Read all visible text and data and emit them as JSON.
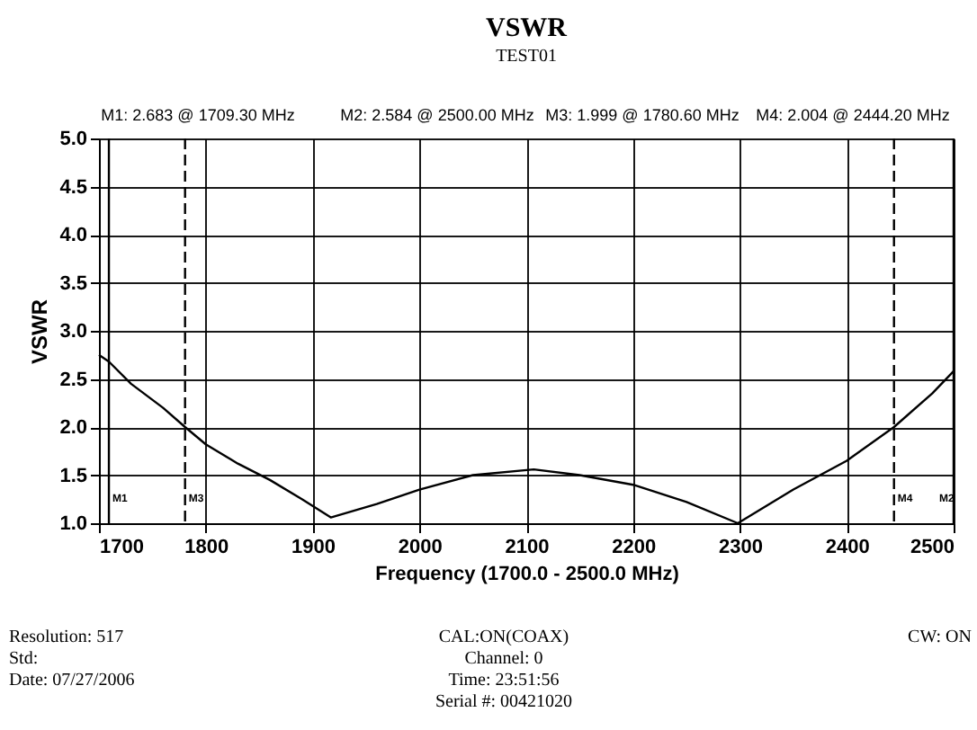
{
  "chart_data": {
    "type": "line",
    "title": "VSWR",
    "subtitle": "TEST01",
    "xlabel": "Frequency (1700.0 - 2500.0 MHz)",
    "ylabel": "VSWR",
    "x": [
      1700,
      1709.3,
      1730,
      1760,
      1780.6,
      1800,
      1830,
      1860,
      1890,
      1917,
      1960,
      2000,
      2050,
      2107,
      2150,
      2200,
      2250,
      2298,
      2350,
      2400,
      2444.2,
      2480,
      2500
    ],
    "series": [
      {
        "color": "#000000",
        "values": [
          2.75,
          2.68,
          2.45,
          2.2,
          2.0,
          1.82,
          1.62,
          1.45,
          1.25,
          1.06,
          1.2,
          1.35,
          1.5,
          1.56,
          1.5,
          1.4,
          1.22,
          1.0,
          1.35,
          1.65,
          2.0,
          2.35,
          2.58
        ]
      }
    ],
    "xlim": [
      1700,
      2500
    ],
    "xticks": [
      1700,
      1800,
      1900,
      2000,
      2100,
      2200,
      2300,
      2400,
      2500
    ],
    "ylim": [
      1.0,
      5.0
    ],
    "yticks": [
      {
        "value": 1.0,
        "label": "1.0"
      },
      1.5,
      {
        "value": 2.0,
        "label": "2.0"
      },
      2.5,
      {
        "value": 3.0,
        "label": "3.0"
      },
      3.5,
      {
        "value": 4.0,
        "label": "4.0"
      },
      4.5,
      {
        "value": 5.0,
        "label": "5.0"
      }
    ],
    "grid": true,
    "marker": "none",
    "line_style": "solid",
    "ref_lines": [
      {
        "axis": "x",
        "value": 1709.3,
        "label": "M1",
        "line_style": "solid",
        "color": "#000000"
      },
      {
        "axis": "x",
        "value": 2500,
        "label": "M2",
        "line_style": "solid",
        "color": "#000000"
      },
      {
        "axis": "x",
        "value": 1780.6,
        "label": "M3",
        "line_style": "dashed",
        "color": "#000000"
      },
      {
        "axis": "x",
        "value": 2444.2,
        "label": "M4",
        "line_style": "dashed",
        "color": "#000000"
      }
    ],
    "annotations": [
      "M1: 2.683 @ 1709.30 MHz",
      "M2: 2.584 @ 2500.00 MHz",
      "M3: 1.999 @ 1780.60 MHz",
      "M4: 2.004 @ 2444.20 MHz",
      "Resolution: 517",
      "Std:",
      "Date: 07/27/2006",
      "CAL:ON(COAX)",
      "Channel: 0",
      "Time: 23:51:56",
      "Serial #: 00421020",
      "CW: ON"
    ]
  }
}
